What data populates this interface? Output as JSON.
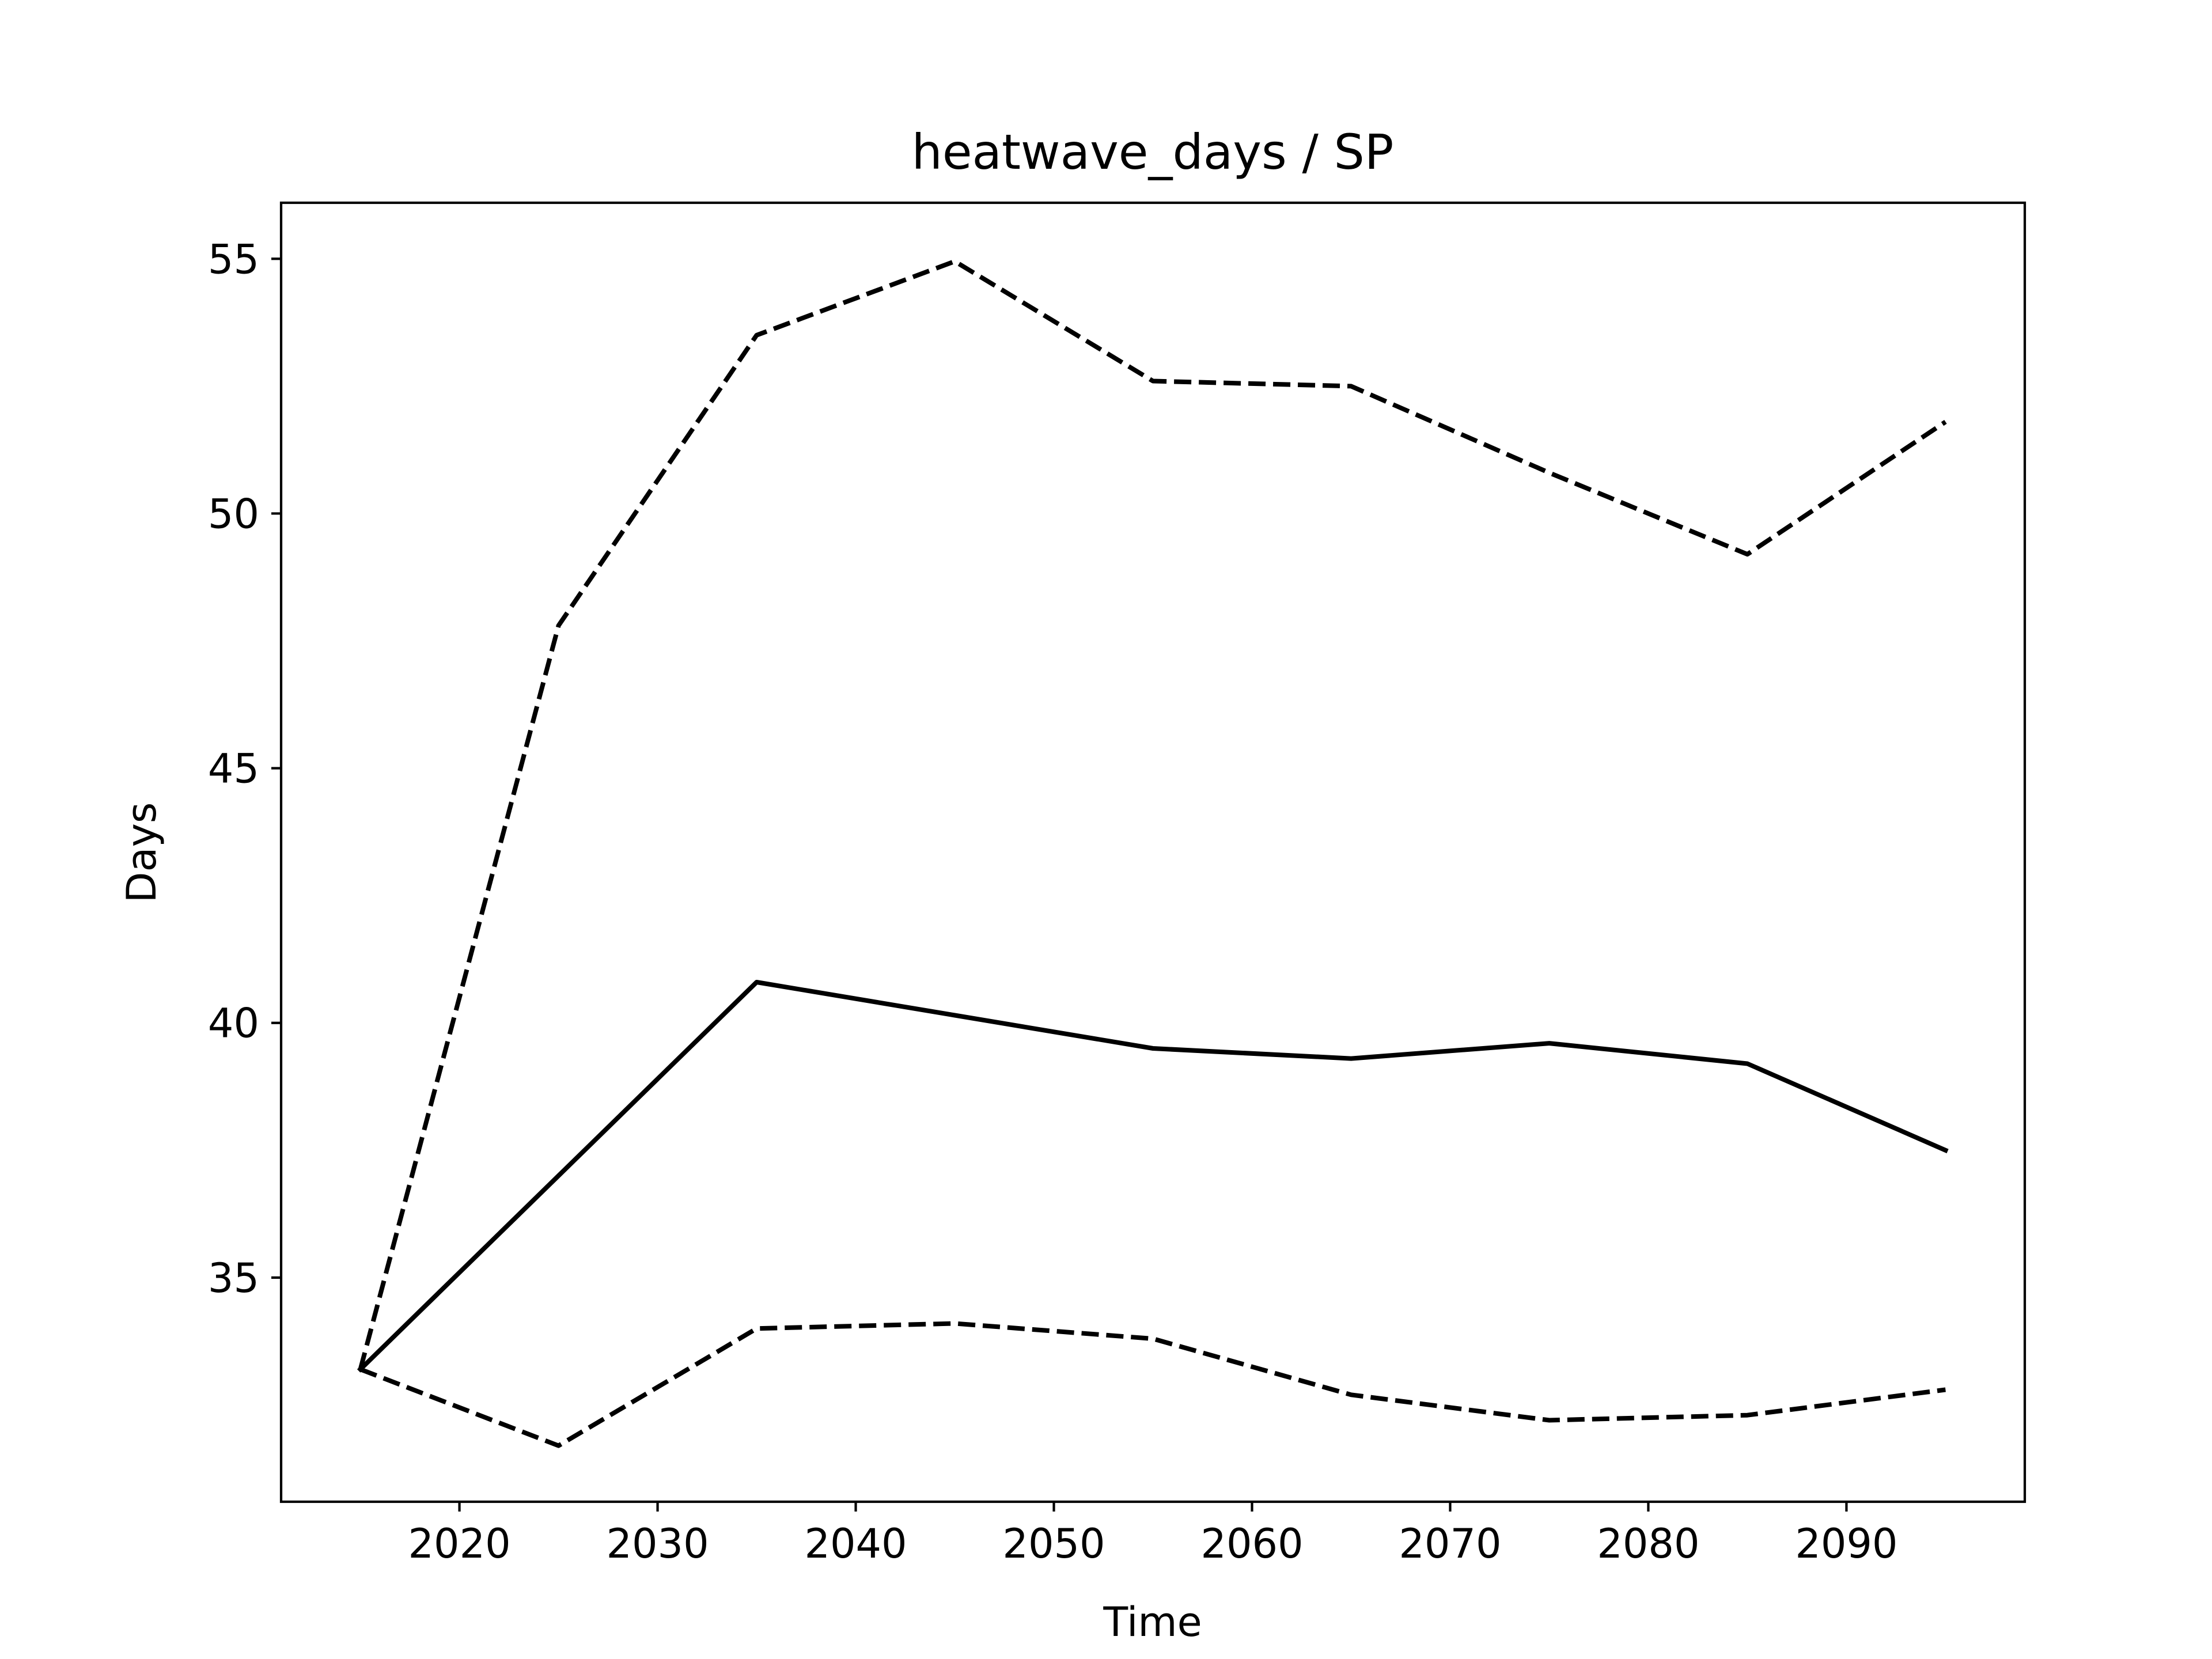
{
  "chart_data": {
    "type": "line",
    "title": "heatwave_days / SP",
    "xlabel": "Time",
    "ylabel": "Days",
    "xlim": [
      2011,
      2099
    ],
    "ylim": [
      30.6,
      56.1
    ],
    "x_ticks": [
      2020,
      2030,
      2040,
      2050,
      2060,
      2070,
      2080,
      2090
    ],
    "y_ticks": [
      35,
      40,
      45,
      50,
      55
    ],
    "grid": false,
    "legend": "none",
    "x": [
      2015,
      2025,
      2035,
      2045,
      2055,
      2065,
      2075,
      2085,
      2095
    ],
    "series": [
      {
        "style": "solid",
        "color": "#000000",
        "values": [
          33.2,
          37.0,
          40.8,
          40.15,
          39.5,
          39.3,
          39.6,
          39.2,
          37.5
        ]
      },
      {
        "style": "dashed",
        "color": "#000000",
        "values": [
          33.2,
          47.8,
          53.5,
          54.95,
          52.6,
          52.5,
          50.8,
          49.2,
          51.8
        ]
      },
      {
        "style": "dashed",
        "color": "#000000",
        "values": [
          33.2,
          31.7,
          34.0,
          34.1,
          33.8,
          32.7,
          32.2,
          32.3,
          32.8
        ]
      }
    ]
  }
}
